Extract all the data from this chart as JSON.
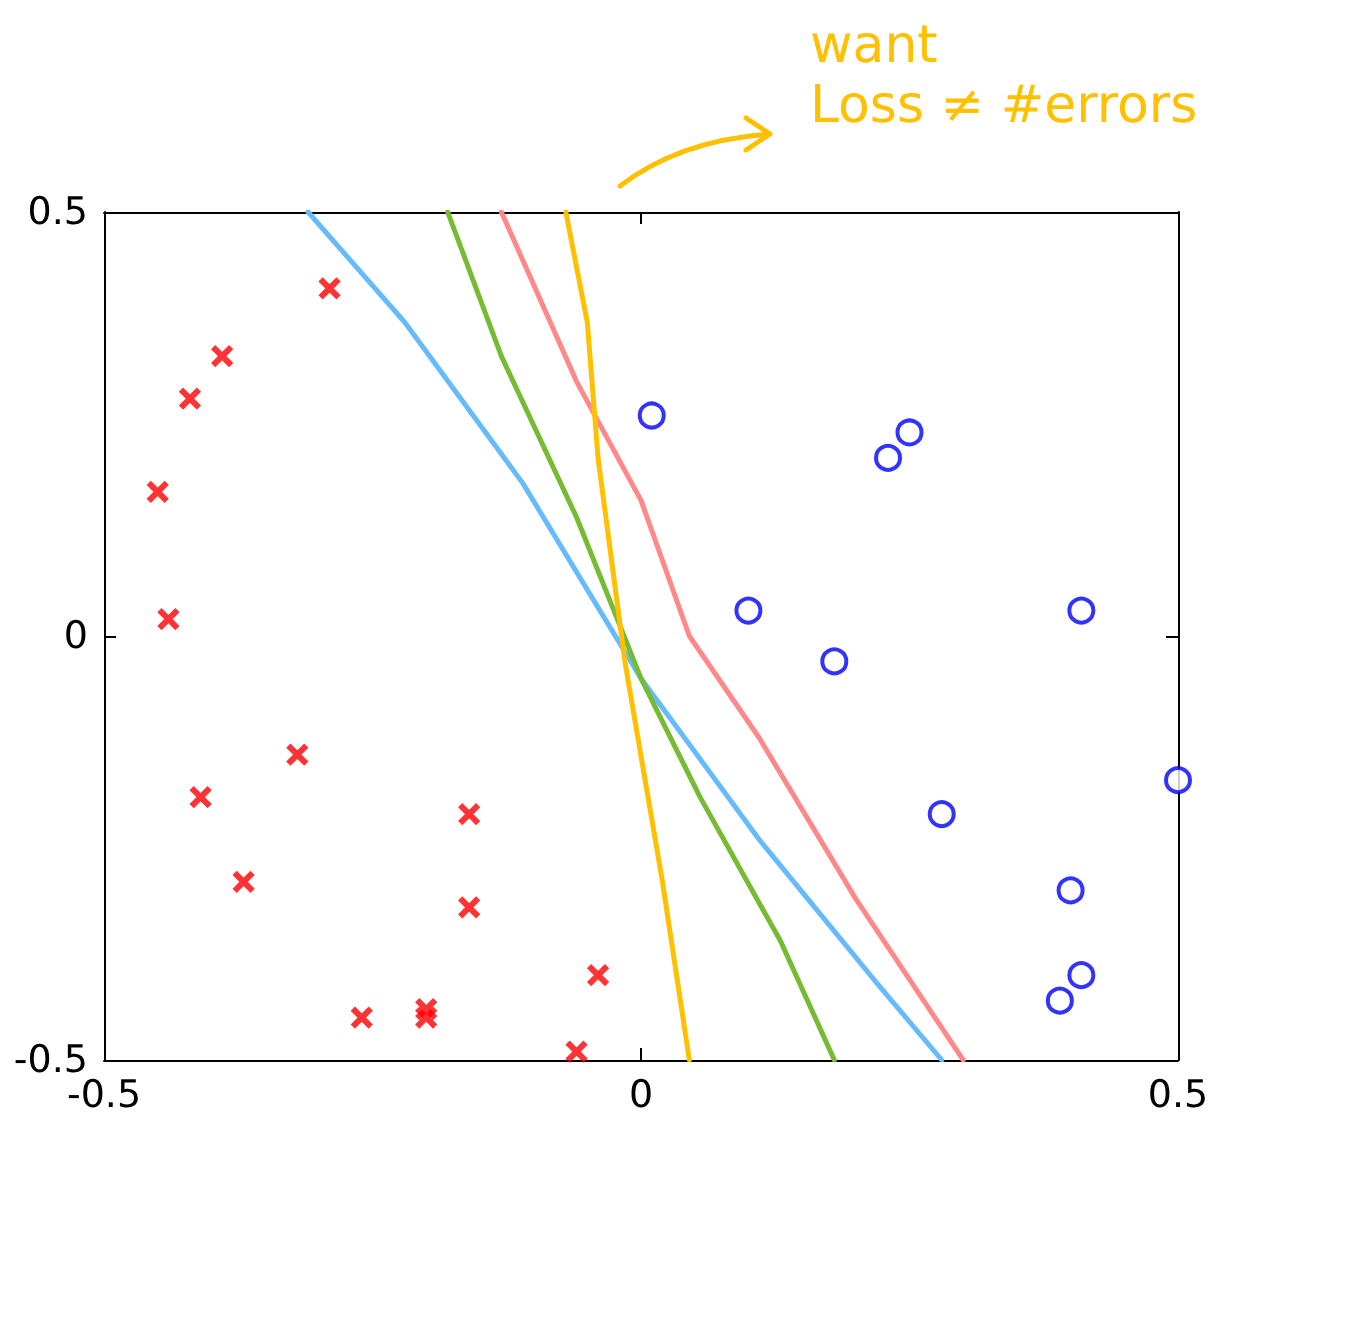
{
  "chart_data": {
    "type": "scatter",
    "xlim": [
      -0.5,
      0.5
    ],
    "ylim": [
      -0.5,
      0.5
    ],
    "xticks": [
      -0.5,
      0,
      0.5
    ],
    "yticks": [
      -0.5,
      0,
      0.5
    ],
    "grid": false,
    "annotations": [
      "want\nLoss ≠ #errors"
    ],
    "series": [
      {
        "marker": "cross",
        "color": "#ff0000",
        "x": [
          -0.29,
          -0.39,
          -0.42,
          -0.45,
          -0.44,
          -0.32,
          -0.41,
          -0.37,
          -0.16,
          -0.16,
          -0.26,
          -0.2,
          -0.2,
          -0.04,
          -0.06
        ],
        "values": [
          0.41,
          0.33,
          0.28,
          0.17,
          0.02,
          -0.14,
          -0.19,
          -0.29,
          -0.21,
          -0.32,
          -0.45,
          -0.44,
          -0.45,
          -0.4,
          -0.49
        ]
      },
      {
        "marker": "circle",
        "color": "#0000ff",
        "x": [
          0.01,
          0.1,
          0.18,
          0.23,
          0.25,
          0.28,
          0.41,
          0.5,
          0.4,
          0.41,
          0.39
        ],
        "values": [
          0.26,
          0.03,
          -0.03,
          0.21,
          0.24,
          -0.21,
          0.03,
          -0.17,
          -0.3,
          -0.4,
          -0.43
        ]
      },
      {
        "type": "line",
        "marker": "none",
        "color": "#66bbff",
        "x": [
          -0.31,
          -0.22,
          -0.11,
          0,
          0.11,
          0.22,
          0.28
        ],
        "values": [
          0.5,
          0.37,
          0.18,
          -0.05,
          -0.24,
          -0.41,
          -0.5
        ]
      },
      {
        "type": "line",
        "marker": "none",
        "color": "#77bb33",
        "x": [
          -0.18,
          -0.13,
          -0.06,
          0,
          0.055,
          0.13,
          0.18
        ],
        "values": [
          0.5,
          0.33,
          0.14,
          -0.05,
          -0.19,
          -0.36,
          -0.5
        ]
      },
      {
        "type": "line",
        "marker": "none",
        "color": "#ff8888",
        "x": [
          -0.13,
          -0.06,
          0,
          0.045,
          0.11,
          0.2,
          0.3
        ],
        "values": [
          0.5,
          0.3,
          0.16,
          0,
          -0.12,
          -0.31,
          -0.5
        ]
      },
      {
        "type": "line",
        "marker": "none",
        "color": "#ffc000",
        "x": [
          -0.07,
          -0.05,
          -0.04,
          -0.015,
          0.02,
          0.045
        ],
        "values": [
          0.5,
          0.37,
          0.21,
          -0.03,
          -0.29,
          -0.5
        ]
      }
    ]
  }
}
